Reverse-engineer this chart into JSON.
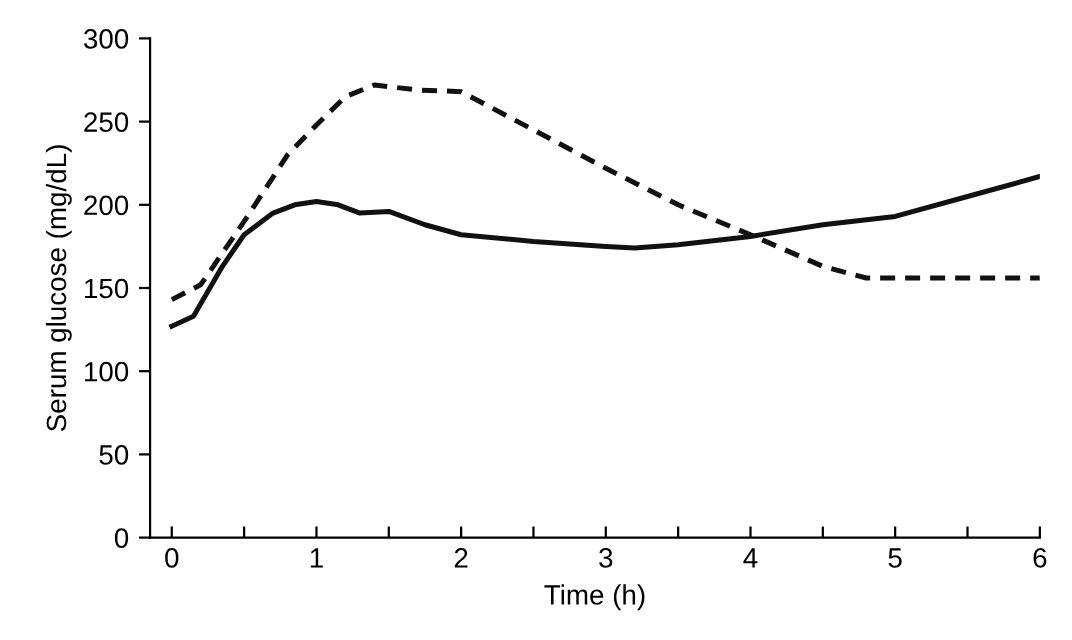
{
  "chart_data": {
    "type": "line",
    "xlabel": "Time (h)",
    "ylabel": "Serum glucose (mg/dL)",
    "xlim": [
      -0.15,
      6
    ],
    "ylim": [
      0,
      300
    ],
    "xticks": [
      0,
      {
        "value": 0.5,
        "label": null
      },
      1,
      {
        "value": 1.5,
        "label": null
      },
      2,
      {
        "value": 2.5,
        "label": null
      },
      3,
      {
        "value": 3.5,
        "label": null
      },
      4,
      {
        "value": 4.5,
        "label": null
      },
      5,
      {
        "value": 5.5,
        "label": null
      },
      6
    ],
    "yticks": [
      0,
      50,
      100,
      150,
      200,
      250,
      300
    ],
    "grid": false,
    "legend": false,
    "marker": "none",
    "series": [
      {
        "color": "#111111",
        "line_style": "solid",
        "x": [
          0,
          0.15,
          0.35,
          0.5,
          0.7,
          0.85,
          1,
          1.15,
          1.3,
          1.5,
          1.75,
          2,
          2.5,
          3,
          3.2,
          3.5,
          4,
          4.5,
          5,
          5.5,
          6
        ],
        "values": [
          127,
          133,
          163,
          182,
          195,
          200,
          202,
          200,
          195,
          196,
          188,
          182,
          178,
          175,
          174,
          176,
          181,
          188,
          193,
          205,
          217
        ]
      },
      {
        "color": "#111111",
        "line_style": "dashed",
        "x": [
          0,
          0.2,
          0.5,
          0.8,
          1,
          1.2,
          1.4,
          1.7,
          2,
          2.5,
          3,
          3.5,
          4,
          4.5,
          4.8,
          5,
          6
        ],
        "values": [
          143,
          152,
          190,
          230,
          248,
          265,
          272,
          269,
          268,
          245,
          222,
          200,
          182,
          163,
          156,
          156,
          156
        ]
      }
    ]
  }
}
